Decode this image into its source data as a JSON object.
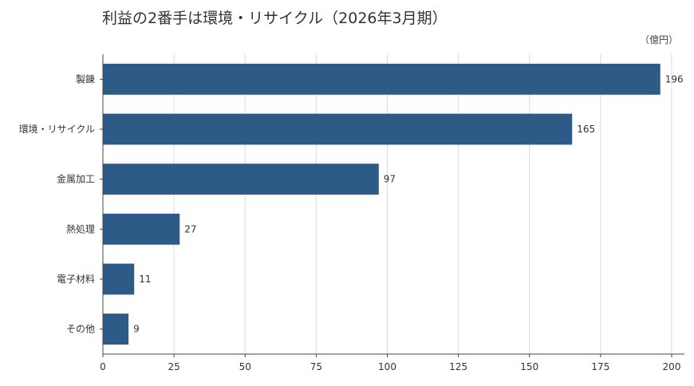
{
  "chart_data": {
    "type": "bar",
    "orientation": "horizontal",
    "title": "利益の2番手は環境・リサイクル（2026年3月期）",
    "unit_label": "（億円）",
    "categories": [
      "製錬",
      "環境・リサイクル",
      "金属加工",
      "熱処理",
      "電子材料",
      "その他"
    ],
    "values": [
      196,
      165,
      97,
      27,
      11,
      9
    ],
    "value_labels": [
      "196",
      "165",
      "97",
      "27",
      "11",
      "9"
    ],
    "xlim": [
      0,
      200
    ],
    "xticks": [
      "0",
      "25",
      "50",
      "75",
      "100",
      "125",
      "150",
      "175",
      "200"
    ],
    "grid": "vertical",
    "legend": "none",
    "colors": {
      "bar": "#2e5a88",
      "grid": "#d9d9d9",
      "axis": "#444444"
    }
  }
}
